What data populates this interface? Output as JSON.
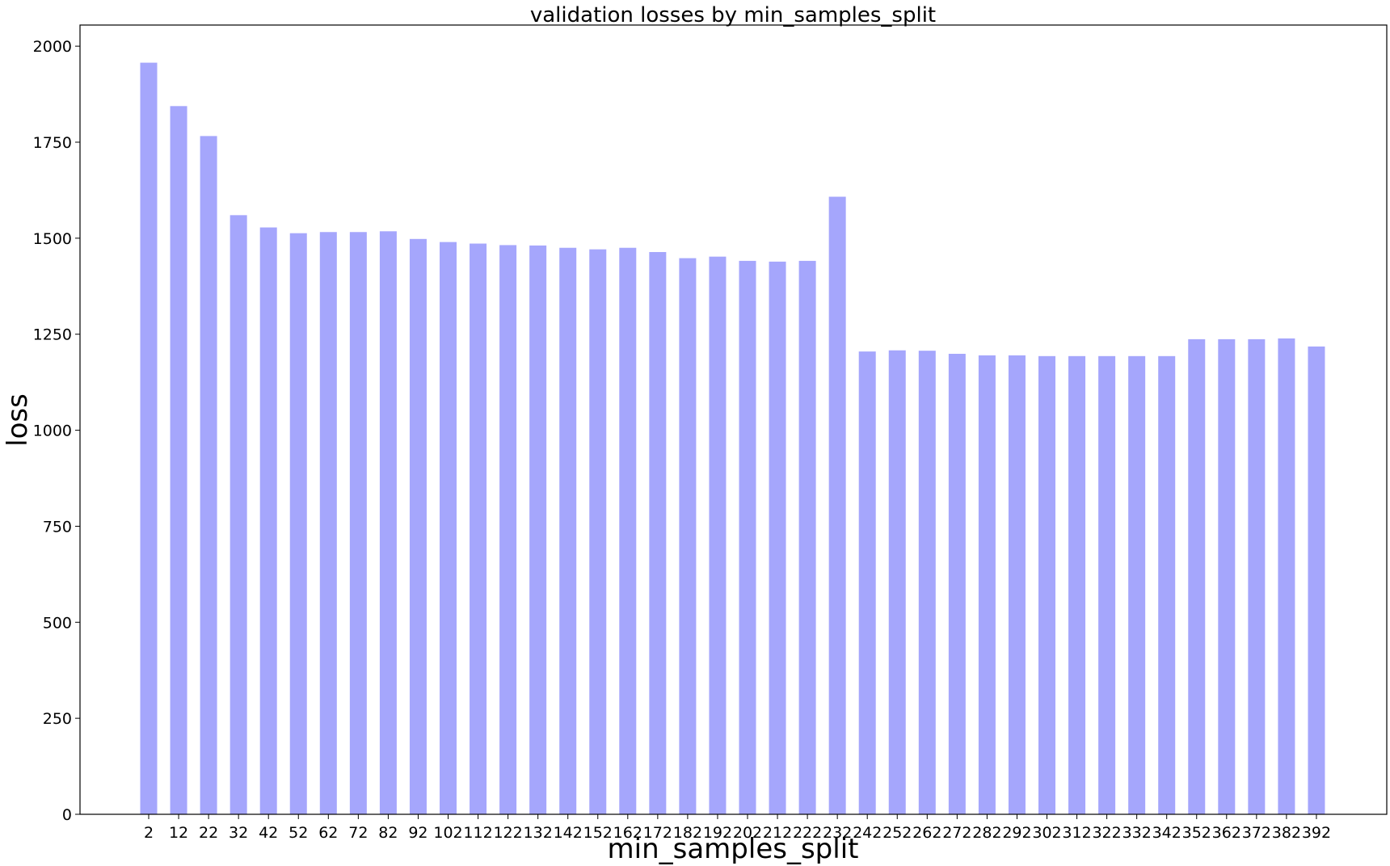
{
  "chart_data": {
    "type": "bar",
    "title": "validation losses by min_samples_split",
    "xlabel": "min_samples_split",
    "ylabel": "loss",
    "ylim": [
      0,
      2055
    ],
    "y_ticks": [
      0,
      250,
      500,
      750,
      1000,
      1250,
      1500,
      1750,
      2000
    ],
    "grid": false,
    "bar_color": "#a5a6fc",
    "categories": [
      "2",
      "12",
      "22",
      "32",
      "42",
      "52",
      "62",
      "72",
      "82",
      "92",
      "102",
      "112",
      "122",
      "132",
      "142",
      "152",
      "162",
      "172",
      "182",
      "192",
      "202",
      "212",
      "222",
      "232",
      "242",
      "252",
      "262",
      "272",
      "282",
      "292",
      "302",
      "312",
      "322",
      "332",
      "342",
      "352",
      "362",
      "372",
      "382",
      "392"
    ],
    "values": [
      1957,
      1844,
      1766,
      1560,
      1528,
      1513,
      1516,
      1516,
      1518,
      1498,
      1490,
      1486,
      1482,
      1481,
      1475,
      1471,
      1475,
      1464,
      1448,
      1452,
      1441,
      1439,
      1441,
      1608,
      1205,
      1208,
      1207,
      1199,
      1195,
      1195,
      1193,
      1193,
      1193,
      1193,
      1193,
      1237,
      1237,
      1237,
      1239,
      1218
    ]
  }
}
